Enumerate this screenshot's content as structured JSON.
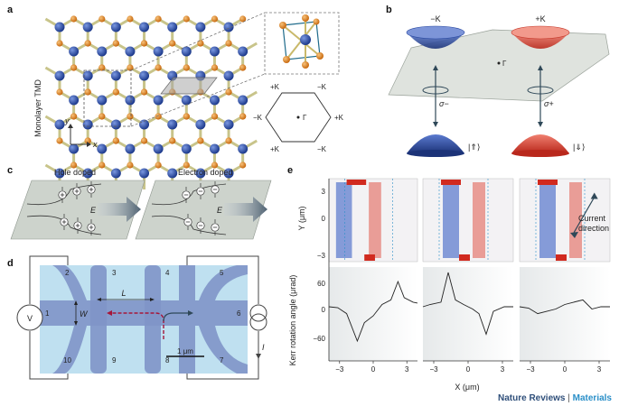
{
  "panels": {
    "a": {
      "label": "a",
      "axis_label": "Monolayer TMD",
      "x_label": "x",
      "y_label": "y",
      "bz_labels": {
        "top_left": "+K",
        "top_right": "−K",
        "left": "−K",
        "right": "+K",
        "bottom_left": "+K",
        "bottom_right": "−K",
        "center": "Γ"
      }
    },
    "b": {
      "label": "b",
      "valley_left": "−K",
      "valley_right": "+K",
      "center": "Γ",
      "sigma_minus": "σ−",
      "sigma_plus": "σ+",
      "state_left": "|⇑⟩",
      "state_right": "|⇓⟩"
    },
    "c": {
      "label": "c",
      "hole_doped": "Hole doped",
      "electron_doped": "Electron doped",
      "field_label": "E"
    },
    "d": {
      "label": "d",
      "contacts": [
        "1",
        "2",
        "3",
        "4",
        "5",
        "6",
        "7",
        "8",
        "9",
        "10"
      ],
      "voltmeter": "V",
      "current": "I",
      "length": "L",
      "width": "W",
      "scale_bar": "1 μm"
    },
    "e": {
      "label": "e",
      "y_axis_label": "Y (μm)",
      "y_ticks": [
        "3",
        "0",
        "−3"
      ],
      "kerr_axis_label": "Kerr rotation angle (μrad)",
      "kerr_ticks": [
        "60",
        "0",
        "−60"
      ],
      "x_axis_label": "X (μm)",
      "x_ticks": [
        "−3",
        "0",
        "3"
      ],
      "annotation_line1": "Current",
      "annotation_line2": "direction"
    }
  },
  "footer": {
    "publisher": "Nature Reviews",
    "separator": " | ",
    "journal": "Materials"
  },
  "colors": {
    "blue": "#2a49a0",
    "orange": "#e0821e",
    "red": "#d63a2a",
    "bond": "#c8c48a",
    "panel_grey": "#cdd3cc",
    "device_bg": "#bfe0f0",
    "device_bar": "#7f95c8"
  }
}
